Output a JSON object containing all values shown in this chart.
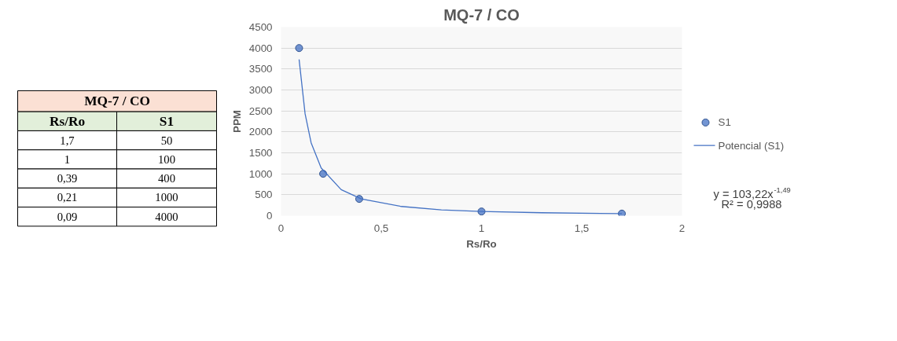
{
  "chart_data": [
    {
      "type": "other",
      "title": "MQ-7 / CO",
      "xlabel": "Rs/Ro",
      "categories": [
        "1,7",
        "1",
        "0,39",
        "0,21",
        "0,09"
      ],
      "data_labels": true,
      "series": [
        {
          "name": "S1",
          "values": [
            50,
            100,
            400,
            1000,
            4000
          ]
        }
      ]
    },
    {
      "type": "scatter",
      "title": "MQ-7 / CO",
      "xlabel": "Rs/Ro",
      "ylabel": "PPM",
      "xlim": [
        0,
        2
      ],
      "xticks": [
        0,
        {
          "value": 0.5,
          "label": "0,5"
        },
        1,
        {
          "value": 1.5,
          "label": "1,5"
        },
        2
      ],
      "ylim": [
        0,
        4500
      ],
      "yticks": [
        0,
        500,
        1000,
        1500,
        2000,
        2500,
        3000,
        3500,
        4000,
        4500
      ],
      "grid": "y",
      "legend": "right",
      "series": [
        {
          "name": "S1",
          "color": "#4472c4",
          "marker": "circle",
          "x": [
            1.7,
            1,
            0.39,
            0.21,
            0.09
          ],
          "values": [
            50,
            100,
            400,
            1000,
            4000
          ]
        },
        {
          "name": "Potencial (S1)",
          "type": "line",
          "marker": "none",
          "color": "#4472c4",
          "x": [
            0.09,
            0.12,
            0.15,
            0.2,
            0.3,
            0.4,
            0.6,
            0.8,
            1.0,
            1.3,
            1.7
          ],
          "values": [
            3730,
            2430,
            1740,
            1140,
            620,
            400,
            220,
            140,
            100,
            70,
            50
          ]
        }
      ],
      "annotations": [
        "y = 103,22x$^{-1,49}$",
        "R² = 0,9988"
      ]
    }
  ]
}
